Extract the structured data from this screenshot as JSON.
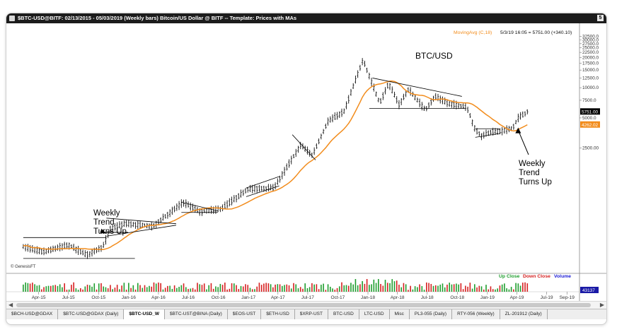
{
  "window": {
    "title": "$BTC-USD@BITF:  02/13/2015 - 05/03/2019 (Weekly bars)  Bitcoin/US Dollar @ BITF  --  Template: Prices with MAs",
    "corner_label": "5"
  },
  "tabs": [
    {
      "label": "$BCH-USD@GDAX",
      "active": false
    },
    {
      "label": "$BTC-USD@GDAX (Daily)",
      "active": false
    },
    {
      "label": "$BTC-USD_W",
      "active": true
    },
    {
      "label": "$BTC-UST@BINA (Daily)",
      "active": false
    },
    {
      "label": "$EOS-UST",
      "active": false
    },
    {
      "label": "$ETH-USD",
      "active": false
    },
    {
      "label": "$XRP-UST",
      "active": false
    },
    {
      "label": "BTC-USD",
      "active": false
    },
    {
      "label": "LTC-USD",
      "active": false
    },
    {
      "label": "Misc",
      "active": false
    },
    {
      "label": "PL3-055 (Daily)",
      "active": false
    },
    {
      "label": "RTY-056 (Weekly)",
      "active": false
    },
    {
      "label": "ZL-201912 (Daily)",
      "active": false
    }
  ],
  "colors": {
    "ma_line": "#f28c1c",
    "ma_legend": "#f28c1c",
    "candle": "#111111",
    "vol_up": "#1f9e2e",
    "vol_down": "#d62020",
    "volume_legend": "#1a1ad6",
    "last_price_bg": "#000000",
    "ma_price_bg": "#f28c1c",
    "volume_box_bg": "#1a1aa6"
  },
  "chart_data": {
    "type": "candlestick",
    "title": "BTC/USD",
    "ma_legend": "MovingAvg (C,18)",
    "price_readout": "5/3/19 16:05 = 5751.00 (+340.10)",
    "credit": "© GenesisFT",
    "y_scale": "log",
    "ylim": [
      150,
      35000
    ],
    "y_ticks": [
      "32500.0",
      "30000.0",
      "27500.0",
      "25000.0",
      "22500.0",
      "20000.0",
      "17500.0",
      "15000.0",
      "12500.0",
      "10000.0",
      "7500.0",
      "5000.0",
      "2500.00"
    ],
    "x_ticks": [
      "Apr-15",
      "Jul-15",
      "Oct-15",
      "Jan-16",
      "Apr-16",
      "Jul-16",
      "Oct-16",
      "Jan-17",
      "Apr-17",
      "Jul-17",
      "Oct-17",
      "Jan-18",
      "Apr-18",
      "Jul-18",
      "Oct-18",
      "Jan-19",
      "Apr-19",
      "Jul-19",
      "Sep-19"
    ],
    "last_price_label": "5751.00",
    "ma_price_label": "4262.02",
    "volume_legend": {
      "up": "Up Close",
      "down": "Down Close",
      "volume": "Volume"
    },
    "volume_last": "43137",
    "price_path": [
      {
        "date": "2015-02-13",
        "close": 260
      },
      {
        "date": "2015-04-15",
        "close": 230
      },
      {
        "date": "2015-07-01",
        "close": 270
      },
      {
        "date": "2015-08-25",
        "close": 215
      },
      {
        "date": "2015-10-15",
        "close": 260
      },
      {
        "date": "2015-11-05",
        "close": 390
      },
      {
        "date": "2015-12-20",
        "close": 440
      },
      {
        "date": "2016-03-15",
        "close": 415
      },
      {
        "date": "2016-06-15",
        "close": 720
      },
      {
        "date": "2016-08-05",
        "close": 580
      },
      {
        "date": "2016-10-10",
        "close": 620
      },
      {
        "date": "2017-01-01",
        "close": 980
      },
      {
        "date": "2017-03-20",
        "close": 1000
      },
      {
        "date": "2017-06-10",
        "close": 2700
      },
      {
        "date": "2017-07-15",
        "close": 2100
      },
      {
        "date": "2017-09-01",
        "close": 4600
      },
      {
        "date": "2017-10-20",
        "close": 5800
      },
      {
        "date": "2017-12-17",
        "close": 19000
      },
      {
        "date": "2018-02-06",
        "close": 7000
      },
      {
        "date": "2018-03-05",
        "close": 11000
      },
      {
        "date": "2018-04-06",
        "close": 6800
      },
      {
        "date": "2018-05-05",
        "close": 9600
      },
      {
        "date": "2018-06-25",
        "close": 6000
      },
      {
        "date": "2018-07-25",
        "close": 8200
      },
      {
        "date": "2018-09-01",
        "close": 7000
      },
      {
        "date": "2018-10-30",
        "close": 6400
      },
      {
        "date": "2018-11-25",
        "close": 3800
      },
      {
        "date": "2018-12-15",
        "close": 3300
      },
      {
        "date": "2019-01-15",
        "close": 3650
      },
      {
        "date": "2019-02-15",
        "close": 3700
      },
      {
        "date": "2019-03-20",
        "close": 4000
      },
      {
        "date": "2019-04-05",
        "close": 5000
      },
      {
        "date": "2019-05-03",
        "close": 5751
      }
    ],
    "trendlines": [
      {
        "from": {
          "date": "2015-02-13",
          "price": 320
        },
        "to": {
          "date": "2015-10-25",
          "price": 320
        }
      },
      {
        "from": {
          "date": "2015-02-13",
          "price": 198
        },
        "to": {
          "date": "2016-01-20",
          "price": 198
        }
      },
      {
        "from": {
          "date": "2015-10-25",
          "price": 500
        },
        "to": {
          "date": "2016-05-25",
          "price": 440
        }
      },
      {
        "from": {
          "date": "2015-10-25",
          "price": 330
        },
        "to": {
          "date": "2016-05-25",
          "price": 425
        }
      },
      {
        "from": {
          "date": "2016-06-10",
          "price": 720
        },
        "to": {
          "date": "2016-09-30",
          "price": 590
        }
      },
      {
        "from": {
          "date": "2016-06-10",
          "price": 570
        },
        "to": {
          "date": "2016-09-30",
          "price": 570
        }
      },
      {
        "from": {
          "date": "2016-12-25",
          "price": 1000
        },
        "to": {
          "date": "2017-04-05",
          "price": 1300
        }
      },
      {
        "from": {
          "date": "2016-12-25",
          "price": 820
        },
        "to": {
          "date": "2017-04-05",
          "price": 1050
        }
      },
      {
        "from": {
          "date": "2017-05-15",
          "price": 3400
        },
        "to": {
          "date": "2017-07-25",
          "price": 1900
        }
      },
      {
        "from": {
          "date": "2018-01-15",
          "price": 12500
        },
        "to": {
          "date": "2018-10-15",
          "price": 8200
        }
      },
      {
        "from": {
          "date": "2018-01-05",
          "price": 6200
        },
        "to": {
          "date": "2018-10-25",
          "price": 6200
        }
      },
      {
        "from": {
          "date": "2018-11-25",
          "price": 3900
        },
        "to": {
          "date": "2019-02-10",
          "price": 3900
        }
      },
      {
        "from": {
          "date": "2018-11-25",
          "price": 3200
        },
        "to": {
          "date": "2019-02-10",
          "price": 3500
        }
      }
    ],
    "annotations": [
      {
        "text": [
          "Weekly",
          "Trend",
          "Turns Up"
        ],
        "arrow_to": {
          "date": "2015-10-25",
          "price": 350
        }
      },
      {
        "text": [
          "Weekly",
          "Trend",
          "Turns Up"
        ],
        "arrow_to": {
          "date": "2019-04-05",
          "price": 4000
        }
      }
    ]
  }
}
